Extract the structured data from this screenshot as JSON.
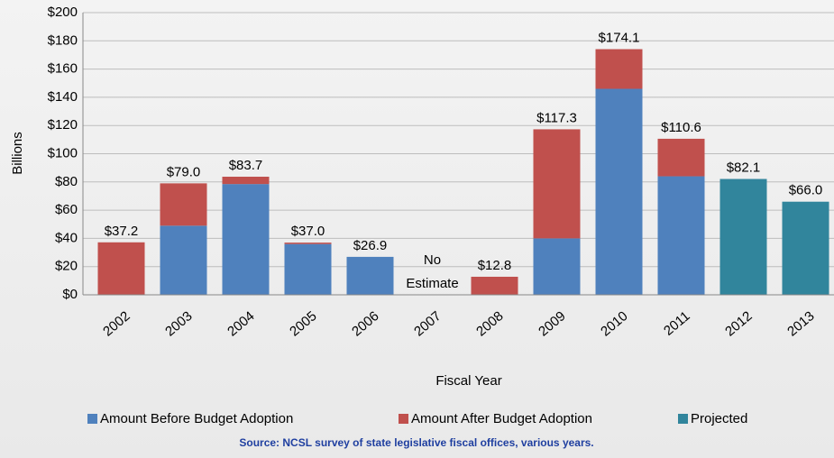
{
  "chart_data": {
    "type": "stacked_bar",
    "categories": [
      "2002",
      "2003",
      "2004",
      "2005",
      "2006",
      "2007",
      "2008",
      "2009",
      "2010",
      "2011",
      "2012",
      "2013"
    ],
    "series": [
      {
        "name": "Amount Before Budget Adoption",
        "color": "#4f81bd",
        "values": [
          null,
          49,
          78.5,
          36,
          26.9,
          null,
          null,
          40,
          146,
          84,
          null,
          null
        ]
      },
      {
        "name": "Amount After Budget Adoption",
        "color": "#c0504d",
        "values": [
          37.2,
          30,
          5.2,
          1,
          null,
          null,
          12.8,
          77.3,
          28.1,
          26.6,
          null,
          null
        ]
      },
      {
        "name": "Projected",
        "color": "#31859c",
        "values": [
          null,
          null,
          null,
          null,
          null,
          null,
          null,
          null,
          null,
          null,
          82.1,
          66.0
        ]
      }
    ],
    "total_labels": [
      "$37.2",
      "$79.0",
      "$83.7",
      "$37.0",
      "$26.9",
      "No Estimate",
      "$12.8",
      "$117.3",
      "$174.1",
      "$110.6",
      "$82.1",
      "$66.0"
    ],
    "ylabel": "Billions",
    "xlabel": "Fiscal Year",
    "source": "Source: NCSL survey of state legislative fiscal offices, various years.",
    "ylim": [
      0,
      200
    ],
    "yticks": [
      {
        "value": 0,
        "label": "$0"
      },
      {
        "value": 20,
        "label": "$20"
      },
      {
        "value": 40,
        "label": "$40"
      },
      {
        "value": 60,
        "label": "$60"
      },
      {
        "value": 80,
        "label": "$80"
      },
      {
        "value": 100,
        "label": "$100"
      },
      {
        "value": 120,
        "label": "$120"
      },
      {
        "value": 140,
        "label": "$140"
      },
      {
        "value": 160,
        "label": "$160"
      },
      {
        "value": 180,
        "label": "$180"
      },
      {
        "value": 200,
        "label": "$200"
      }
    ],
    "grid": true,
    "legend": "bottom"
  }
}
